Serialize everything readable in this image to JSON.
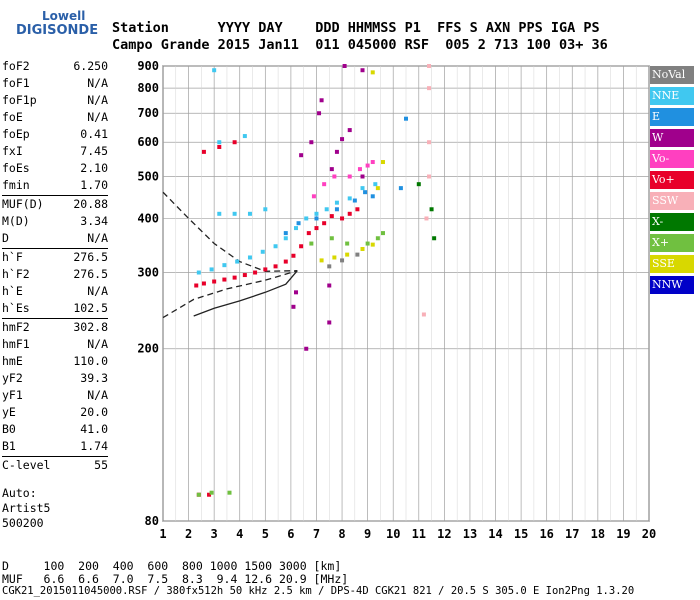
{
  "logo": {
    "line1": "Lowell",
    "line2": "DIGISONDE"
  },
  "header": {
    "row1": "Station      YYYY DAY    DDD HHMMSS P1  FFS S AXN PPS IGA PS",
    "row2": "Campo Grande 2015 Jan11  011 045000 RSF  005 2 713 100 03+ 36"
  },
  "params": [
    {
      "k": "foF2",
      "v": "6.250"
    },
    {
      "k": "foF1",
      "v": "N/A"
    },
    {
      "k": "foF1p",
      "v": "N/A"
    },
    {
      "k": "foE",
      "v": "N/A"
    },
    {
      "k": "foEp",
      "v": "0.41"
    },
    {
      "k": "fxI",
      "v": "7.45"
    },
    {
      "k": "foEs",
      "v": "2.10"
    },
    {
      "k": "fmin",
      "v": "1.70"
    },
    {
      "k": "MUF(D)",
      "v": "20.88"
    },
    {
      "k": "M(D)",
      "v": "3.34"
    },
    {
      "k": "D",
      "v": "N/A"
    },
    {
      "k": "h`F",
      "v": "276.5"
    },
    {
      "k": "h`F2",
      "v": "276.5"
    },
    {
      "k": "h`E",
      "v": "N/A"
    },
    {
      "k": "h`Es",
      "v": "102.5"
    },
    {
      "k": "hmF2",
      "v": "302.8"
    },
    {
      "k": "hmF1",
      "v": "N/A"
    },
    {
      "k": "hmE",
      "v": "110.0"
    },
    {
      "k": "yF2",
      "v": "39.3"
    },
    {
      "k": "yF1",
      "v": "N/A"
    },
    {
      "k": "yE",
      "v": "20.0"
    },
    {
      "k": "B0",
      "v": "41.0"
    },
    {
      "k": "B1",
      "v": "1.74"
    },
    {
      "k": "C-level",
      "v": "55"
    }
  ],
  "auto": {
    "line1": "Auto:",
    "line2": "Artist5",
    "line3": "500200"
  },
  "legend": [
    {
      "label": "NoVal",
      "bg": "#808080",
      "fg": "#ffffff"
    },
    {
      "label": "NNE",
      "bg": "#40c8f0",
      "fg": "#ffffff"
    },
    {
      "label": "E",
      "bg": "#2090e0",
      "fg": "#ffffff"
    },
    {
      "label": "W",
      "bg": "#a0008c",
      "fg": "#ffffff"
    },
    {
      "label": "Vo-",
      "bg": "#ff40c0",
      "fg": "#ffffff"
    },
    {
      "label": "Vo+",
      "bg": "#e8002a",
      "fg": "#ffffff"
    },
    {
      "label": "SSW",
      "bg": "#f8b0b8",
      "fg": "#ffffff"
    },
    {
      "label": "X-",
      "bg": "#007800",
      "fg": "#ffffff"
    },
    {
      "label": "X+",
      "bg": "#70c040",
      "fg": "#ffffff"
    },
    {
      "label": "SSE",
      "bg": "#d8d800",
      "fg": "#ffffff"
    },
    {
      "label": "NNW",
      "bg": "#0000c8",
      "fg": "#ffffff"
    }
  ],
  "footer": {
    "row1": "D     100  200  400  600  800 1000 1500 3000 [km]",
    "row2": "MUF   6.6  6.6  7.0  7.5  8.3  9.4 12.6 20.9 [MHz]",
    "row3": "CGK21_2015011045000.RSF / 380fx512h 50 kHz 2.5 km / DPS-4D CGK21 821 / 20.5 S 305.0 E Ion2Png 1.3.20"
  },
  "chart_data": {
    "type": "scatter",
    "xlabel": "",
    "ylabel": "",
    "xlim": [
      1,
      20
    ],
    "ylim": [
      80,
      900
    ],
    "x_ticks": [
      1,
      2,
      3,
      4,
      5,
      6,
      7,
      8,
      9,
      10,
      11,
      12,
      13,
      14,
      15,
      16,
      17,
      18,
      19,
      20
    ],
    "y_ticks": [
      80,
      200,
      300,
      400,
      500,
      600,
      700,
      800,
      900
    ],
    "y_scale": "log",
    "grid": true,
    "series": [
      {
        "name": "Vo+",
        "color": "#e8002a",
        "points": [
          [
            2.3,
            280
          ],
          [
            2.6,
            283
          ],
          [
            3.0,
            286
          ],
          [
            3.4,
            289
          ],
          [
            3.8,
            292
          ],
          [
            4.2,
            296
          ],
          [
            4.6,
            300
          ],
          [
            5.0,
            305
          ],
          [
            5.4,
            310
          ],
          [
            5.8,
            318
          ],
          [
            6.1,
            328
          ],
          [
            6.4,
            345
          ],
          [
            6.7,
            370
          ],
          [
            7.0,
            380
          ],
          [
            7.3,
            390
          ],
          [
            7.6,
            405
          ],
          [
            8.0,
            400
          ],
          [
            8.3,
            410
          ],
          [
            8.6,
            420
          ],
          [
            2.6,
            570
          ],
          [
            3.2,
            585
          ],
          [
            3.8,
            600
          ],
          [
            2.4,
            92
          ],
          [
            2.8,
            92
          ]
        ]
      },
      {
        "name": "NNE",
        "color": "#40c8f0",
        "points": [
          [
            2.4,
            300
          ],
          [
            2.9,
            305
          ],
          [
            3.4,
            312
          ],
          [
            3.9,
            318
          ],
          [
            4.4,
            325
          ],
          [
            4.9,
            335
          ],
          [
            5.4,
            345
          ],
          [
            5.8,
            360
          ],
          [
            6.2,
            380
          ],
          [
            6.6,
            400
          ],
          [
            7.0,
            410
          ],
          [
            7.4,
            420
          ],
          [
            7.8,
            435
          ],
          [
            8.3,
            445
          ],
          [
            8.8,
            470
          ],
          [
            9.3,
            480
          ],
          [
            3.2,
            410
          ],
          [
            3.8,
            410
          ],
          [
            4.4,
            410
          ],
          [
            5.0,
            420
          ],
          [
            3.0,
            880
          ],
          [
            3.2,
            600
          ],
          [
            4.2,
            620
          ]
        ]
      },
      {
        "name": "E",
        "color": "#2090e0",
        "points": [
          [
            5.8,
            370
          ],
          [
            6.3,
            390
          ],
          [
            7.0,
            400
          ],
          [
            7.8,
            420
          ],
          [
            8.5,
            440
          ],
          [
            8.9,
            460
          ],
          [
            9.2,
            450
          ],
          [
            10.3,
            470
          ],
          [
            10.5,
            680
          ]
        ]
      },
      {
        "name": "W",
        "color": "#a0008c",
        "points": [
          [
            6.4,
            560
          ],
          [
            6.8,
            600
          ],
          [
            7.1,
            700
          ],
          [
            7.2,
            750
          ],
          [
            7.6,
            520
          ],
          [
            7.8,
            570
          ],
          [
            8.0,
            610
          ],
          [
            8.3,
            640
          ],
          [
            8.1,
            900
          ],
          [
            8.8,
            880
          ],
          [
            8.8,
            500
          ],
          [
            6.2,
            270
          ],
          [
            6.1,
            250
          ],
          [
            6.6,
            200
          ],
          [
            7.5,
            280
          ],
          [
            7.5,
            230
          ]
        ]
      },
      {
        "name": "Vo-",
        "color": "#ff40c0",
        "points": [
          [
            6.9,
            450
          ],
          [
            7.3,
            480
          ],
          [
            7.7,
            500
          ],
          [
            8.3,
            500
          ],
          [
            8.7,
            520
          ],
          [
            9.0,
            530
          ],
          [
            9.2,
            540
          ]
        ]
      },
      {
        "name": "SSW",
        "color": "#f8b0b8",
        "points": [
          [
            11.4,
            900
          ],
          [
            11.4,
            800
          ],
          [
            11.4,
            600
          ],
          [
            11.4,
            500
          ],
          [
            11.3,
            400
          ],
          [
            11.2,
            240
          ]
        ]
      },
      {
        "name": "X-",
        "color": "#007800",
        "points": [
          [
            11.0,
            480
          ],
          [
            11.5,
            420
          ],
          [
            11.6,
            360
          ]
        ]
      },
      {
        "name": "X+",
        "color": "#70c040",
        "points": [
          [
            2.4,
            92
          ],
          [
            2.9,
            93
          ],
          [
            3.6,
            93
          ],
          [
            6.8,
            350
          ],
          [
            7.6,
            360
          ],
          [
            8.2,
            350
          ],
          [
            9.0,
            350
          ],
          [
            9.4,
            360
          ],
          [
            9.6,
            370
          ]
        ]
      },
      {
        "name": "SSE",
        "color": "#d8d800",
        "points": [
          [
            7.2,
            320
          ],
          [
            7.7,
            325
          ],
          [
            8.2,
            330
          ],
          [
            8.8,
            340
          ],
          [
            9.2,
            348
          ],
          [
            9.6,
            540
          ],
          [
            9.2,
            870
          ],
          [
            9.4,
            470
          ]
        ]
      },
      {
        "name": "NoVal",
        "color": "#808080",
        "points": [
          [
            7.5,
            310
          ],
          [
            8.0,
            320
          ],
          [
            8.6,
            330
          ]
        ]
      }
    ],
    "lines": [
      {
        "name": "profile-solid",
        "style": "solid",
        "points": [
          [
            2.2,
            238
          ],
          [
            3.0,
            248
          ],
          [
            4.0,
            258
          ],
          [
            5.0,
            270
          ],
          [
            5.8,
            282
          ],
          [
            6.25,
            303
          ]
        ]
      },
      {
        "name": "profile-dashed",
        "style": "dashed",
        "points": [
          [
            1.0,
            460
          ],
          [
            2.0,
            400
          ],
          [
            3.0,
            350
          ],
          [
            4.0,
            318
          ],
          [
            5.0,
            302
          ],
          [
            6.25,
            303
          ]
        ]
      },
      {
        "name": "lower-dashed",
        "style": "dashed",
        "points": [
          [
            1.0,
            236
          ],
          [
            2.2,
            260
          ],
          [
            3.5,
            275
          ],
          [
            5.0,
            288
          ],
          [
            6.25,
            303
          ]
        ]
      }
    ]
  }
}
